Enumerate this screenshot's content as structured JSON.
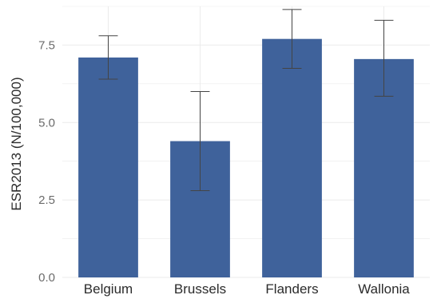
{
  "chart_data": {
    "type": "bar",
    "title": "",
    "xlabel": "",
    "ylabel": "ESR2013 (N/100,000)",
    "categories": [
      "Belgium",
      "Brussels",
      "Flanders",
      "Wallonia"
    ],
    "values": [
      7.1,
      4.4,
      7.7,
      7.05
    ],
    "error_low": [
      6.4,
      2.8,
      6.75,
      5.85
    ],
    "error_high": [
      7.8,
      6.0,
      8.65,
      8.3
    ],
    "yticks": [
      "0.0",
      "2.5",
      "5.0",
      "7.5"
    ],
    "ylim": [
      0,
      8.75
    ],
    "grid": true,
    "legend": "none",
    "colors": {
      "bar": "#3f629b",
      "errorbar": "#444444",
      "grid": "#ebebeb"
    }
  }
}
